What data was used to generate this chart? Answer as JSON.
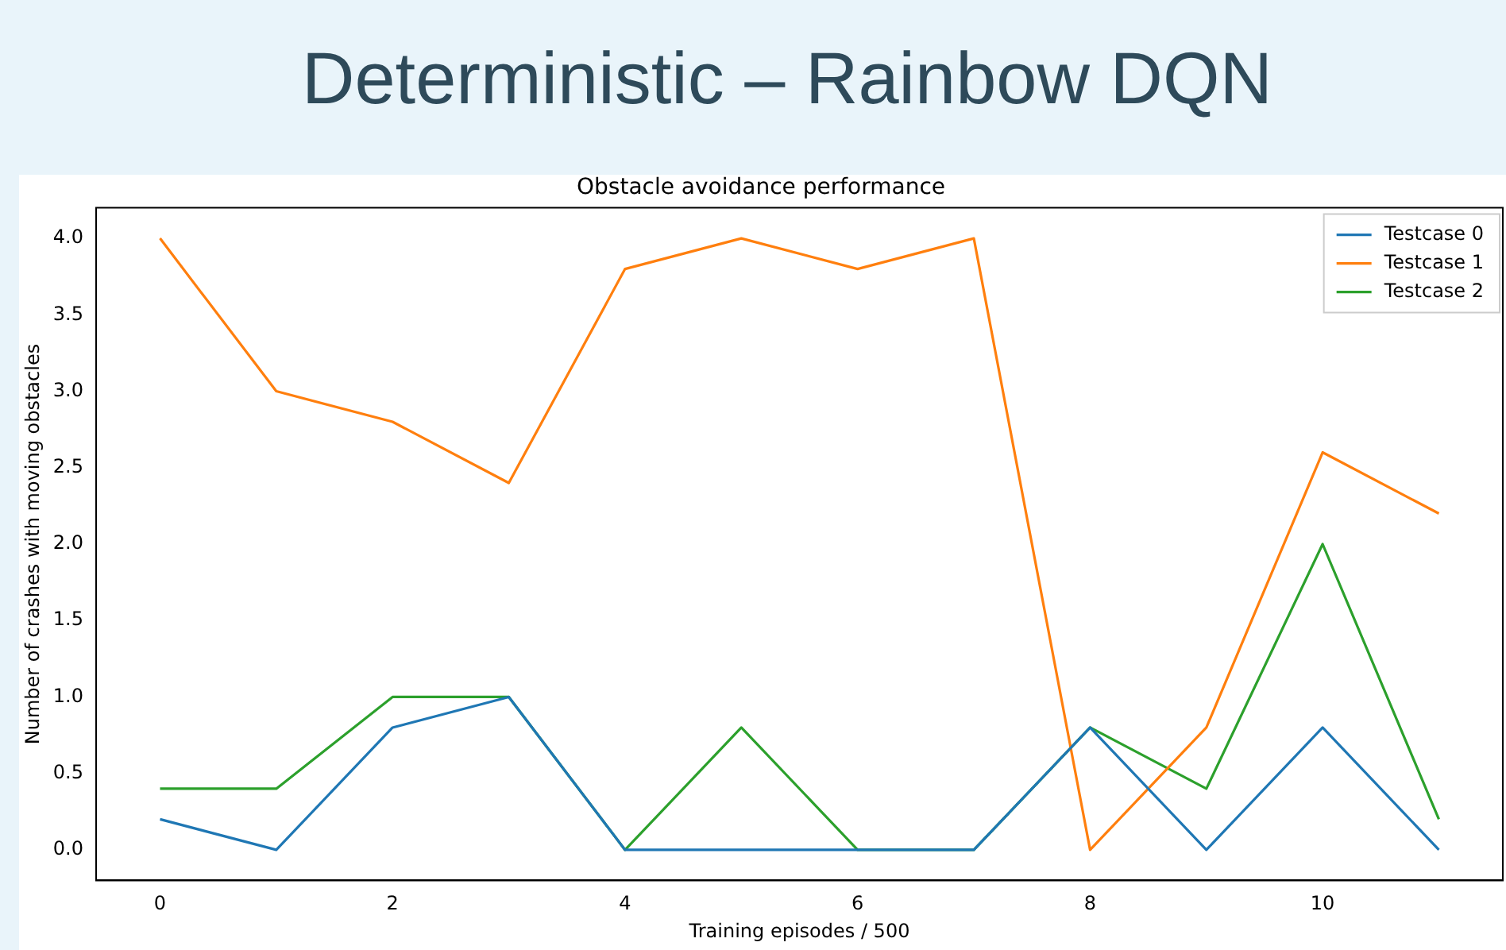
{
  "chart_data": {
    "type": "line",
    "title": "Deterministic – Rainbow DQN",
    "subtitle": "Obstacle avoidance performance",
    "xlabel": "Training episodes / 500",
    "ylabel": "Number of crashes with moving obstacles",
    "x": [
      0,
      1,
      2,
      3,
      4,
      5,
      6,
      7,
      8,
      9,
      10,
      11
    ],
    "series": [
      {
        "name": "Testcase 0",
        "color": "#1f77b4",
        "values": [
          0.2,
          0,
          0.8,
          1,
          0,
          0,
          0,
          0,
          0.8,
          0,
          0.8,
          0
        ]
      },
      {
        "name": "Testcase 1",
        "color": "#ff7f0e",
        "values": [
          4,
          3,
          2.8,
          2.4,
          3.8,
          4,
          3.8,
          4,
          0,
          0.8,
          2.6,
          2.2
        ]
      },
      {
        "name": "Testcase 2",
        "color": "#2ca02c",
        "values": [
          0.4,
          0.4,
          1,
          1,
          0,
          0.8,
          0,
          0,
          0.8,
          0.4,
          2,
          0.2
        ]
      }
    ],
    "xlim": [
      -0.55,
      11.55
    ],
    "xticks": [
      0,
      2,
      4,
      6,
      8,
      10
    ],
    "ylim": [
      -0.2,
      4.2
    ],
    "yticks": [
      {
        "value": 0,
        "label": "0.0"
      },
      {
        "value": 0.5,
        "label": "0.5"
      },
      {
        "value": 1,
        "label": "1.0"
      },
      {
        "value": 1.5,
        "label": "1.5"
      },
      {
        "value": 2,
        "label": "2.0"
      },
      {
        "value": 2.5,
        "label": "2.5"
      },
      {
        "value": 3,
        "label": "3.0"
      },
      {
        "value": 3.5,
        "label": "3.5"
      },
      {
        "value": 4,
        "label": "4.0"
      }
    ],
    "grid": false,
    "legend": "top right",
    "marker": "none",
    "line_style": "solid"
  }
}
